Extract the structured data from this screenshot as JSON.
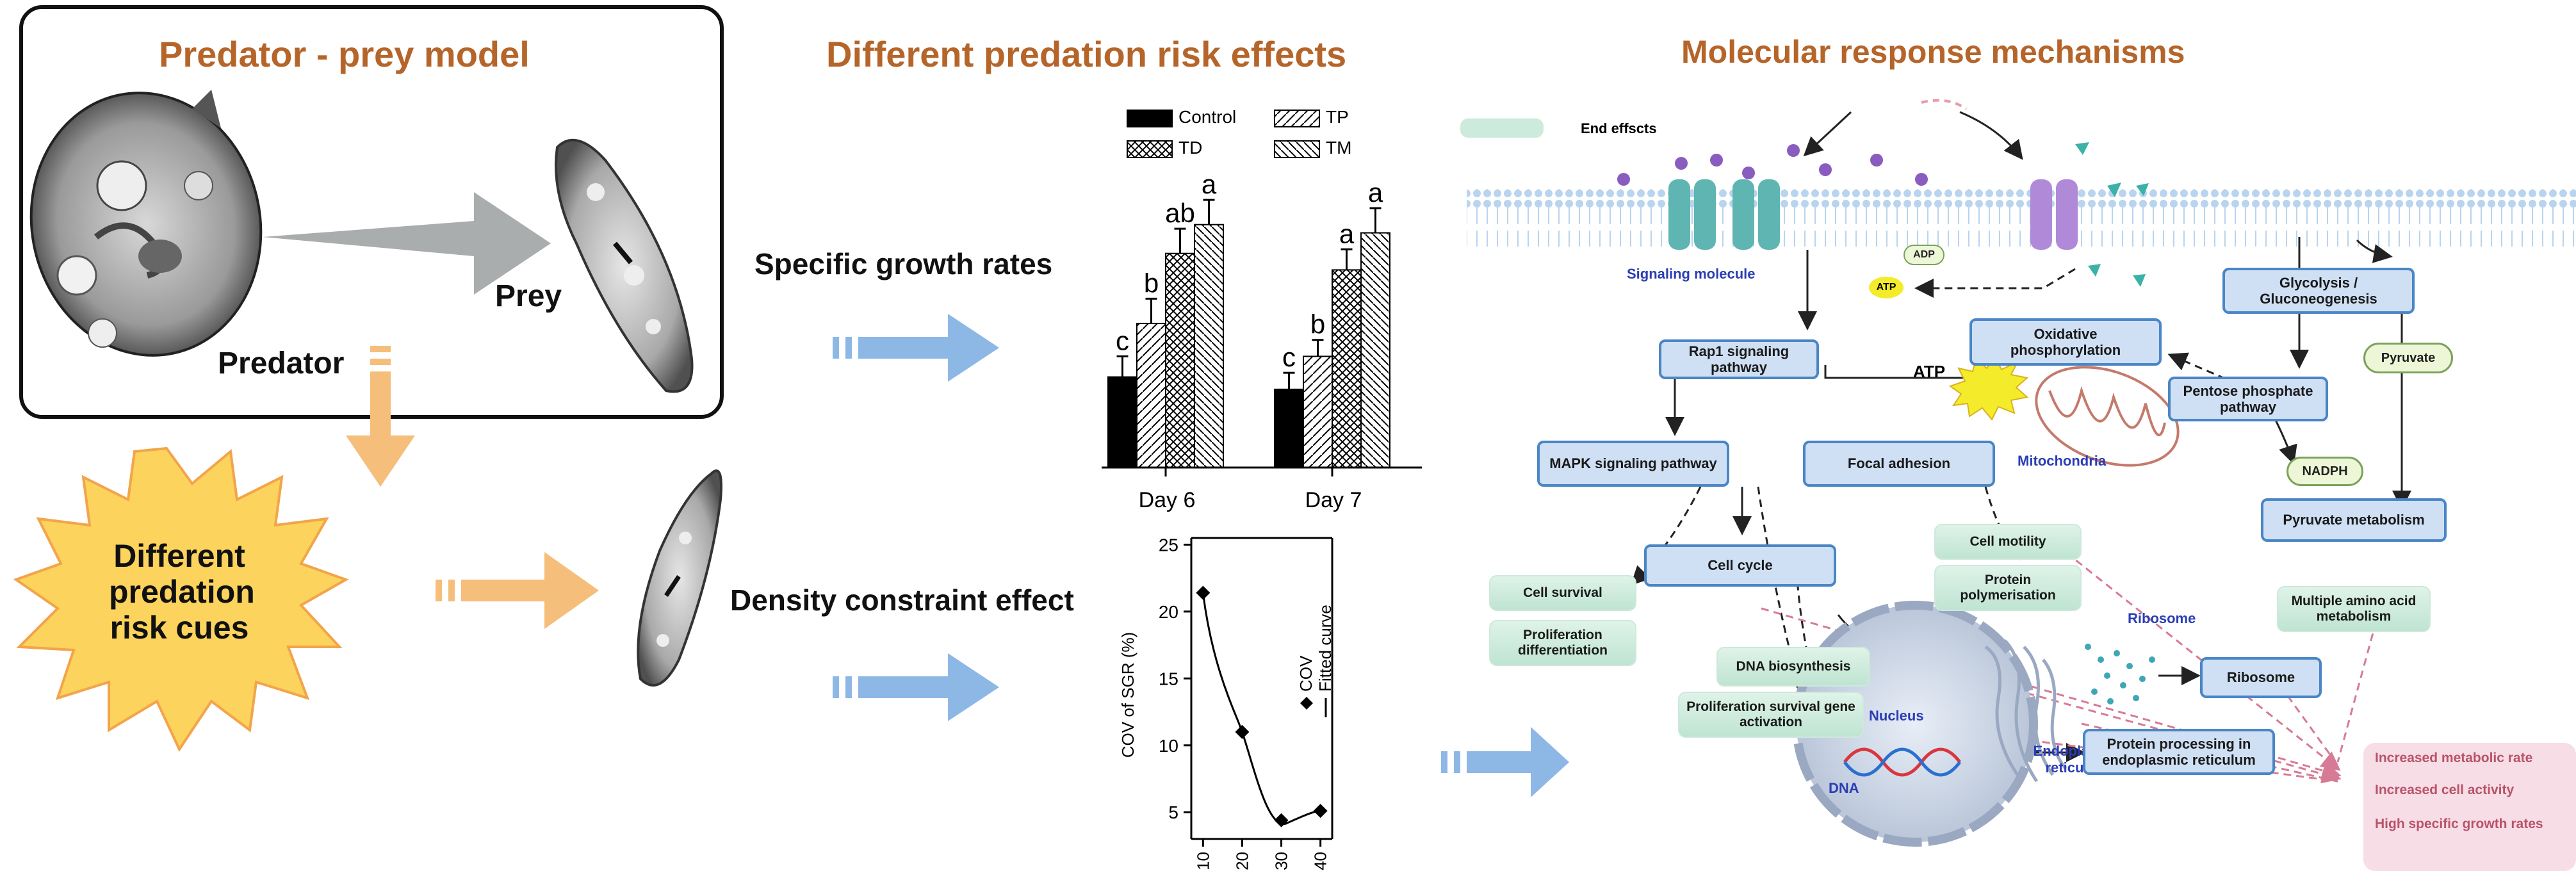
{
  "panel1": {
    "title": "Predator - prey model",
    "predator_label": "Predator",
    "prey_label": "Prey",
    "risk_cues": "Different predation risk cues"
  },
  "panel2": {
    "title": "Different predation risk effects",
    "sgr_label": "Specific growth rates",
    "density_label": "Density constraint effect"
  },
  "panel3": {
    "title": "Molecular response mechanisms",
    "end_effects": "End effscts",
    "signaling_molecule": "Signaling molecule",
    "adp": "ADP",
    "atp_small": "ATP",
    "atp_big": "ATP",
    "rap1": "Rap1 signaling pathway",
    "oxphos": "Oxidative phosphorylation",
    "mitochondria": "Mitochondria",
    "glycolysis": "Glycolysis / Gluconeogenesis",
    "pyruvate": "Pyruvate",
    "pentose": "Pentose phosphate pathway",
    "nadph": "NADPH",
    "mapk": "MAPK signaling pathway",
    "focal": "Focal adhesion",
    "pyruvate_metab": "Pyruvate metabolism",
    "cell_cycle": "Cell cycle",
    "cell_survival": "Cell survival",
    "prolif_diff": "Proliferation differentiation",
    "cell_motility": "Cell motility",
    "protein_poly": "Protein polymerisation",
    "amino_acid": "Multiple amino acid metabolism",
    "ribosome_label": "Ribosome",
    "ribosome_box": "Ribosome",
    "dna_bio": "DNA biosynthesis",
    "prolif_gene": "Proliferation survival gene activation",
    "nucleus": "Nucleus",
    "dna": "DNA",
    "er_label": "Endoplasmic reticulum",
    "protein_proc": "Protein processing in endoplasmic reticulum",
    "results": [
      "Increased metabolic rate",
      "Increased cell activity",
      "High specific growth rates"
    ]
  },
  "chart_data": [
    {
      "type": "bar",
      "categories": [
        "Day 6",
        "Day 7"
      ],
      "series": [
        {
          "name": "Control",
          "values": [
            0.22,
            0.19
          ],
          "errors": [
            0.05,
            0.04
          ],
          "letters": [
            "c",
            "c"
          ]
        },
        {
          "name": "TP",
          "values": [
            0.35,
            0.27
          ],
          "errors": [
            0.06,
            0.04
          ],
          "letters": [
            "b",
            "b"
          ]
        },
        {
          "name": "TD",
          "values": [
            0.52,
            0.48
          ],
          "errors": [
            0.06,
            0.05
          ],
          "letters": [
            "ab",
            "a"
          ]
        },
        {
          "name": "TM",
          "values": [
            0.59,
            0.57
          ],
          "errors": [
            0.06,
            0.06
          ],
          "letters": [
            "a",
            "a"
          ]
        }
      ],
      "ylim": [
        0,
        0.7
      ],
      "legend_placement": "top"
    },
    {
      "type": "scatter",
      "x": [
        10,
        20,
        30,
        40
      ],
      "y": [
        21.4,
        11.0,
        4.4,
        5.1
      ],
      "ylabel": "COV of SGR (%)",
      "xticks": [
        10,
        20,
        30,
        40
      ],
      "yticks": [
        5,
        10,
        15,
        20,
        25
      ],
      "ylim": [
        3,
        25.5
      ],
      "xlim": [
        7,
        43
      ],
      "legend": [
        "COV",
        "Fitted curve"
      ],
      "legend_placement": "top-right",
      "grid": false
    }
  ]
}
